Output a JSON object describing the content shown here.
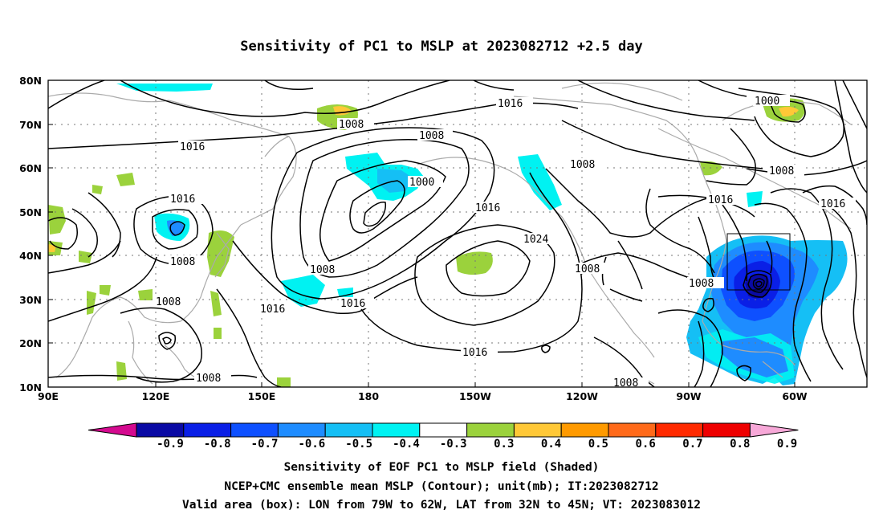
{
  "title": "Sensitivity of PC1 to MSLP at 2023082712 +2.5 day",
  "map": {
    "lat_labels": [
      "80N",
      "70N",
      "60N",
      "50N",
      "40N",
      "30N",
      "20N",
      "10N"
    ],
    "lon_labels": [
      "90E",
      "120E",
      "150E",
      "180",
      "150W",
      "120W",
      "90W",
      "60W"
    ],
    "contour_labels": [
      "1016",
      "1008",
      "1000",
      "1008",
      "1016",
      "1016",
      "1008",
      "1008",
      "1016",
      "1016",
      "1024",
      "1008",
      "1000",
      "1008",
      "1016",
      "1016",
      "1016",
      "1008",
      "1008",
      "1008",
      "1008",
      "1008",
      "1016"
    ],
    "valid_box": {
      "lon_min": "79W",
      "lon_max": "62W",
      "lat_min": "32N",
      "lat_max": "45N"
    },
    "colors": {
      "contour": "#000000",
      "coast": "#aaaaaa",
      "grid": "#777777"
    }
  },
  "colorbar": {
    "tick_labels": [
      "-0.9",
      "-0.8",
      "-0.7",
      "-0.6",
      "-0.5",
      "-0.4",
      "-0.3",
      "0.3",
      "0.4",
      "0.5",
      "0.6",
      "0.7",
      "0.8",
      "0.9"
    ],
    "colors": [
      "#d40a8f",
      "#0a0aa4",
      "#0a1fe6",
      "#0e50ff",
      "#1e8cff",
      "#15bff5",
      "#00f2f2",
      "#ffffff",
      "#9bd23c",
      "#ffc837",
      "#ff9a00",
      "#ff6a1a",
      "#ff2a00",
      "#ee0000",
      "#f7a8d8"
    ]
  },
  "footer": {
    "line1": "Sensitivity of EOF PC1 to MSLP field (Shaded)",
    "line2": "NCEP+CMC ensemble mean MSLP (Contour); unit(mb); IT:2023082712",
    "line3": "Valid area (box): LON from 79W to 62W, LAT from 32N to 45N; VT: 2023083012"
  }
}
